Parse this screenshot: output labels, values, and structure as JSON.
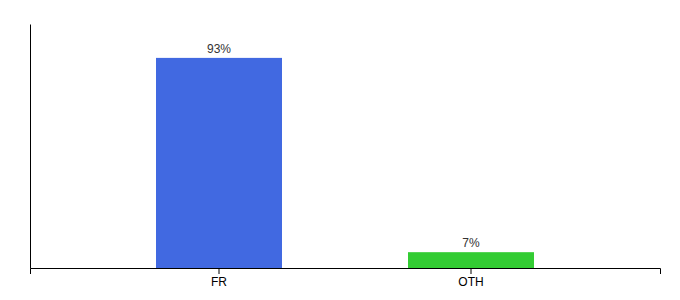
{
  "chart_data": {
    "type": "bar",
    "categories": [
      "FR",
      "OTH"
    ],
    "values": [
      93,
      7
    ],
    "value_labels": [
      "93%",
      "7%"
    ],
    "colors": [
      "#4169e1",
      "#33cc33"
    ],
    "ylim": [
      0,
      108
    ],
    "data_labels": true,
    "tick_labels": "x"
  }
}
